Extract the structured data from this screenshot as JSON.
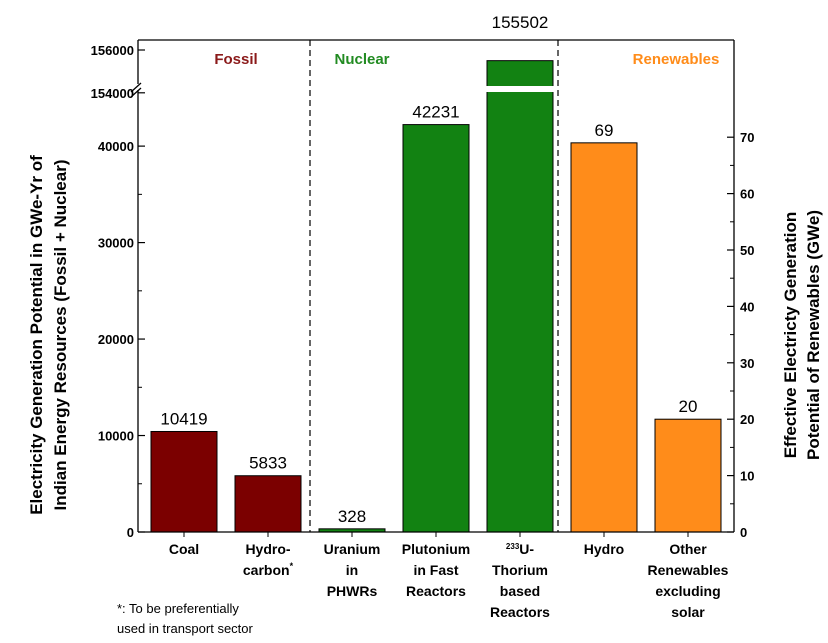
{
  "chart_data": {
    "type": "bar",
    "left_axis": {
      "label_line1": "Electricity Generation Potential in GWe-Yr of",
      "label_line2": "Indian Energy Resources (Fossil + Nuclear)",
      "ticks": [
        "0",
        "10000",
        "20000",
        "30000",
        "40000",
        "154000",
        "156000"
      ],
      "lower_range": [
        0,
        46000
      ],
      "broken_range": [
        154000,
        156000
      ]
    },
    "right_axis": {
      "label_line1": "Effective Electricty Generation",
      "label_line2": "Potential of Renewables (GWe)",
      "ticks": [
        "0",
        "10",
        "20",
        "30",
        "40",
        "50",
        "60",
        "70"
      ],
      "range": [
        0,
        75
      ]
    },
    "groups": [
      {
        "name": "Fossil",
        "color": "#8B1A1A"
      },
      {
        "name": "Nuclear",
        "color": "#228B22"
      },
      {
        "name": "Renewables",
        "color": "#FF8C1A"
      }
    ],
    "bars": [
      {
        "category": [
          "Coal"
        ],
        "value": 10419,
        "label": "10419",
        "axis": "left",
        "color": "#7B0000"
      },
      {
        "category": [
          "Hydro-",
          "carbon*"
        ],
        "value": 5833,
        "label": "5833",
        "axis": "left",
        "color": "#7B0000"
      },
      {
        "category": [
          "Uranium",
          "in",
          "PHWRs"
        ],
        "value": 328,
        "label": "328",
        "axis": "left",
        "color": "#128212"
      },
      {
        "category": [
          "Plutonium",
          "in Fast",
          "Reactors"
        ],
        "value": 42231,
        "label": "42231",
        "axis": "left",
        "color": "#128212"
      },
      {
        "category": [
          "233U-",
          "Thorium",
          "based",
          "Reactors"
        ],
        "value": 155502,
        "label": "155502",
        "axis": "left",
        "color": "#128212"
      },
      {
        "category": [
          "Hydro"
        ],
        "value": 69,
        "label": "69",
        "axis": "right",
        "color": "#FF8C1A"
      },
      {
        "category": [
          "Other",
          "Renewables",
          "excluding",
          "solar"
        ],
        "value": 20,
        "label": "20",
        "axis": "right",
        "color": "#FF8C1A"
      }
    ],
    "footnote_line1": "*: To be preferentially",
    "footnote_line2": "used in transport sector"
  }
}
